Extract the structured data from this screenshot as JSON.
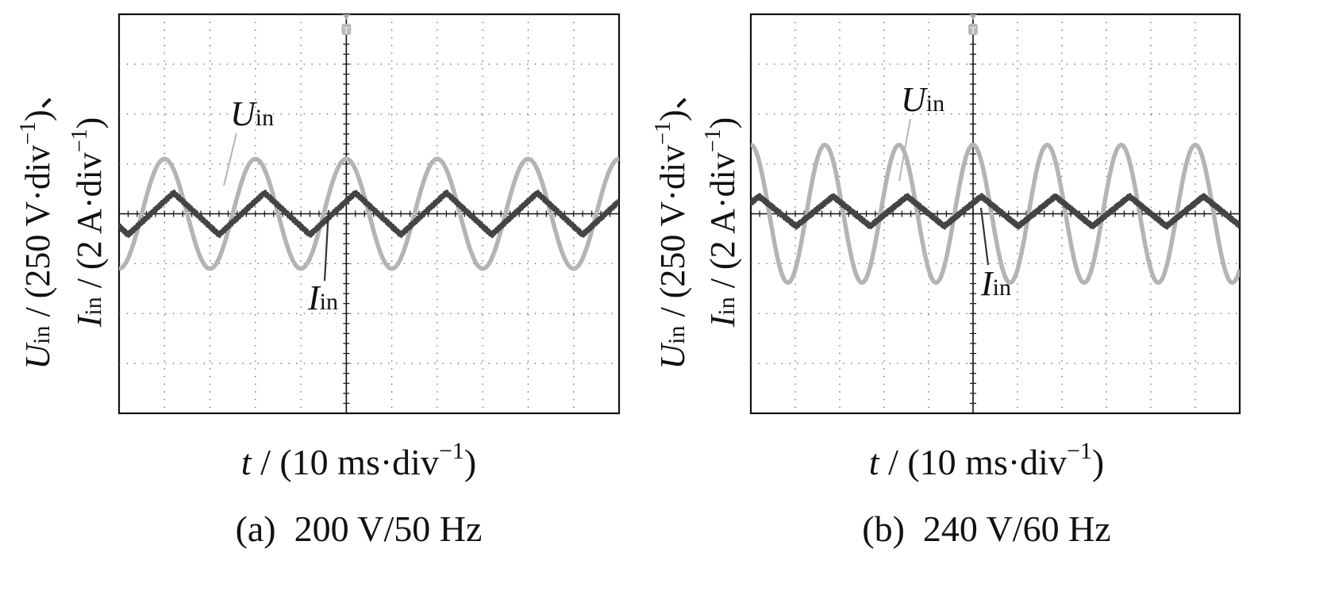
{
  "chart_data": [
    {
      "type": "line",
      "panel_caption": "(a)  200 V/50 Hz",
      "xlabel": {
        "var": "t",
        "text": " / (10 ms·div",
        "sup": "−1",
        "close": ")"
      },
      "ylabel_u": {
        "var": "U",
        "sub": "in",
        "text": " / (250 V·div",
        "sup": "−1",
        "close": ")、"
      },
      "ylabel_i": {
        "var": "I",
        "sub": "in",
        "text": " / (2 A·div",
        "sup": "−1",
        "close": ")"
      },
      "x_unit": "10 ms/div",
      "xlim": [
        0,
        11
      ],
      "ylim": [
        -4,
        4
      ],
      "trigger_marker": "T",
      "trigger_div": 5,
      "series": [
        {
          "name": "U_in",
          "label_var": "U",
          "label_sub": "in",
          "color": "#b4b4b4",
          "scale": "250 V/div",
          "amplitude_div": 1.1,
          "frequency_hz": 50,
          "phase_deg": 0,
          "offset_div": 0,
          "peak_volts": 275
        },
        {
          "name": "I_in",
          "label_var": "I",
          "label_sub": "in",
          "color": "#444444",
          "scale": "2 A/div",
          "amplitude_div": 0.42,
          "frequency_hz": 50,
          "phase_deg": -36,
          "offset_div": 0,
          "shape": "triangular"
        }
      ]
    },
    {
      "type": "line",
      "panel_caption": "(b)  240 V/60 Hz",
      "xlabel": {
        "var": "t",
        "text": " / (10 ms·div",
        "sup": "−1",
        "close": ")"
      },
      "ylabel_u": {
        "var": "U",
        "sub": "in",
        "text": " / (250 V·div",
        "sup": "−1",
        "close": ")、"
      },
      "ylabel_i": {
        "var": "I",
        "sub": "in",
        "text": " / (2 A·div",
        "sup": "−1",
        "close": ")"
      },
      "x_unit": "10 ms/div",
      "xlim": [
        0,
        11
      ],
      "ylim": [
        -4,
        4
      ],
      "trigger_marker": "T",
      "trigger_div": 5,
      "series": [
        {
          "name": "U_in",
          "label_var": "U",
          "label_sub": "in",
          "color": "#b4b4b4",
          "scale": "250 V/div",
          "amplitude_div": 1.38,
          "frequency_hz": 60,
          "phase_deg": 0,
          "offset_div": 0,
          "peak_volts": 340
        },
        {
          "name": "I_in",
          "label_var": "I",
          "label_sub": "in",
          "color": "#444444",
          "scale": "2 A/div",
          "amplitude_div": 0.3,
          "frequency_hz": 60,
          "phase_deg": -40,
          "offset_div": 0.05,
          "shape": "triangular"
        }
      ]
    }
  ]
}
